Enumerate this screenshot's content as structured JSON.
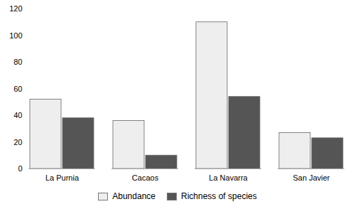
{
  "chart_data": {
    "type": "bar",
    "categories": [
      "La Purnia",
      "Cacaos",
      "La Navarra",
      "San Javier"
    ],
    "series": [
      {
        "name": "Abundance",
        "color": "#eeeeee",
        "values": [
          52,
          36,
          110,
          27
        ]
      },
      {
        "name": "Richness of species",
        "color": "#555555",
        "values": [
          38,
          10,
          54,
          23
        ]
      }
    ],
    "ylim": [
      0,
      120
    ],
    "yticks": [
      0,
      20,
      40,
      60,
      80,
      100,
      120
    ],
    "grid": false,
    "legend": "bottom"
  }
}
